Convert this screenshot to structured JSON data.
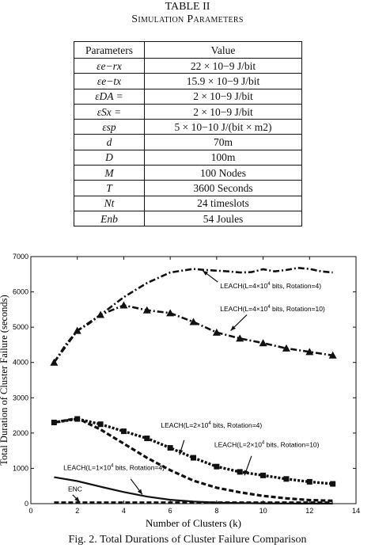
{
  "table": {
    "title": "TABLE II",
    "subtitle": "Simulation Parameters",
    "header": [
      "Parameters",
      "Value"
    ],
    "rows": [
      {
        "param": "εe−rx",
        "value": "22 × 10−9 J/bit"
      },
      {
        "param": "εe−tx",
        "value": "15.9 × 10−9 J/bit"
      },
      {
        "param": "εDA =",
        "value": "2 × 10−9 J/bit"
      },
      {
        "param": "εSx =",
        "value": "2 × 10−9 J/bit"
      },
      {
        "param": "εsp",
        "value": "5 × 10−10 J/(bit × m2)"
      },
      {
        "param": "d",
        "value": "70m"
      },
      {
        "param": "D",
        "value": "100m"
      },
      {
        "param": "M",
        "value": "100 Nodes"
      },
      {
        "param": "T",
        "value": "3600 Seconds"
      },
      {
        "param": "Nt",
        "value": "24 timeslots"
      },
      {
        "param": "Enb",
        "value": "54 Joules"
      }
    ]
  },
  "chart_data": {
    "type": "line",
    "xlabel": "Number of Clusters (k)",
    "ylabel": "Total Duration of Cluster Failure (seconds)",
    "xlim": [
      0,
      14
    ],
    "ylim": [
      0,
      7000
    ],
    "xticks": [
      0,
      2,
      4,
      6,
      8,
      10,
      12,
      14
    ],
    "yticks": [
      0,
      1000,
      2000,
      3000,
      4000,
      5000,
      6000,
      7000
    ],
    "grid": false,
    "series": [
      {
        "name": "LEACH(L=4×10^4 bits, Rotation=4)",
        "style": "dashdot",
        "marker": "none",
        "x": [
          1,
          1.5,
          2,
          2.5,
          3,
          3.5,
          4,
          4.5,
          5,
          5.5,
          6,
          6.5,
          7,
          7.5,
          8,
          8.5,
          9,
          9.5,
          10,
          10.5,
          11,
          11.5,
          12,
          12.5,
          13
        ],
        "y": [
          4000,
          4500,
          4900,
          5100,
          5350,
          5600,
          5850,
          6050,
          6250,
          6400,
          6550,
          6600,
          6650,
          6620,
          6600,
          6580,
          6550,
          6560,
          6640,
          6580,
          6620,
          6680,
          6650,
          6580,
          6550
        ]
      },
      {
        "name": "LEACH(L=4×10^4 bits, Rotation=10)",
        "style": "dashdot",
        "marker": "triangle",
        "x": [
          1,
          2,
          3,
          4,
          5,
          6,
          7,
          8,
          9,
          10,
          11,
          12,
          13
        ],
        "y": [
          4000,
          4900,
          5350,
          5620,
          5480,
          5400,
          5150,
          4850,
          4680,
          4550,
          4400,
          4300,
          4200
        ]
      },
      {
        "name": "LEACH(L=2×10^4 bits, Rotation=4)",
        "style": "dotted",
        "marker": "square",
        "x": [
          1,
          2,
          3,
          4,
          5,
          6,
          7,
          8,
          9,
          10,
          11,
          12,
          13
        ],
        "y": [
          2300,
          2400,
          2250,
          2050,
          1850,
          1580,
          1300,
          1050,
          900,
          800,
          700,
          620,
          560
        ]
      },
      {
        "name": "LEACH(L=2×10^4 bits, Rotation=10)",
        "style": "dashed",
        "marker": "none",
        "x": [
          1,
          2,
          3,
          4,
          5,
          6,
          7,
          8,
          9,
          10,
          11,
          12,
          13
        ],
        "y": [
          2300,
          2420,
          2100,
          1700,
          1300,
          950,
          650,
          450,
          320,
          220,
          150,
          100,
          80
        ]
      },
      {
        "name": "LEACH(L=1×10^4 bits, Rotation=4)",
        "style": "solid",
        "marker": "none",
        "x": [
          1,
          2,
          3,
          4,
          5,
          6,
          7,
          8,
          9,
          10,
          11,
          12,
          13
        ],
        "y": [
          750,
          640,
          480,
          330,
          200,
          110,
          60,
          30,
          15,
          8,
          5,
          3,
          2
        ]
      },
      {
        "name": "ENC",
        "style": "dashed",
        "marker": "none",
        "x": [
          1,
          13
        ],
        "y": [
          30,
          30
        ]
      }
    ],
    "annotations": [
      {
        "text": "LEACH(L=4×10",
        "sup": "4",
        "rest": " bits, Rotation=4)"
      },
      {
        "text": "LEACH(L=4×10",
        "sup": "4",
        "rest": " bits, Rotation=10)"
      },
      {
        "text": "LEACH(L=2×10",
        "sup": "4",
        "rest": " bits, Rotation=4)"
      },
      {
        "text": "LEACH(L=2×10",
        "sup": "4",
        "rest": " bits, Rotation=10)"
      },
      {
        "text": "LEACH(L=1×10",
        "sup": "4",
        "rest": " bits, Rotation=4)"
      },
      {
        "text": "ENC",
        "sup": "",
        "rest": ""
      }
    ]
  },
  "caption": "Fig. 2.    Total Durations of Cluster Failure Comparison"
}
